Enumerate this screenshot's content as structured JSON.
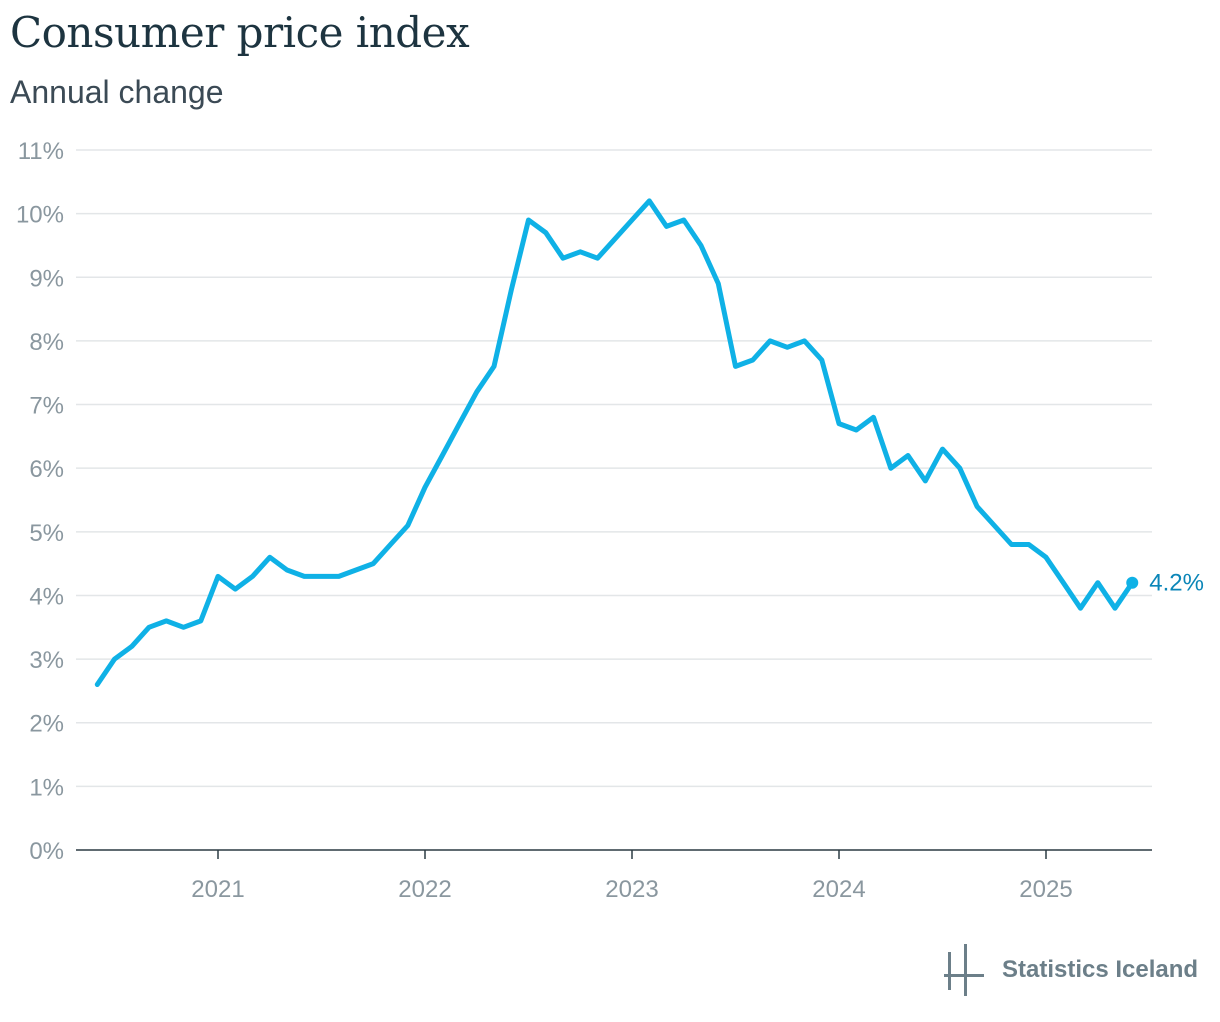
{
  "title": "Consumer price index",
  "subtitle": "Annual change",
  "brand": {
    "name": "Statistics Iceland",
    "logo_icon": "statistics-iceland-logo-icon"
  },
  "colors": {
    "line": "#0fb1e6",
    "end_label": "#0b86b8",
    "grid": "#e3e6e8",
    "axis": "#2b3a42",
    "tick_text": "#8a979f"
  },
  "chart_data": {
    "type": "line",
    "title": "Consumer price index",
    "subtitle": "Annual change",
    "xlabel": "",
    "ylabel": "",
    "ylim": [
      0,
      11
    ],
    "y_ticks": [
      "0%",
      "1%",
      "2%",
      "3%",
      "4%",
      "5%",
      "6%",
      "7%",
      "8%",
      "9%",
      "10%",
      "11%"
    ],
    "x_ticks": [
      "2021",
      "2022",
      "2023",
      "2024",
      "2025"
    ],
    "grid": true,
    "end_label": "4.2%",
    "x": [
      "2020-06",
      "2020-07",
      "2020-08",
      "2020-09",
      "2020-10",
      "2020-11",
      "2020-12",
      "2021-01",
      "2021-02",
      "2021-03",
      "2021-04",
      "2021-05",
      "2021-06",
      "2021-07",
      "2021-08",
      "2021-09",
      "2021-10",
      "2021-11",
      "2021-12",
      "2022-01",
      "2022-02",
      "2022-03",
      "2022-04",
      "2022-05",
      "2022-06",
      "2022-07",
      "2022-08",
      "2022-09",
      "2022-10",
      "2022-11",
      "2022-12",
      "2023-01",
      "2023-02",
      "2023-03",
      "2023-04",
      "2023-05",
      "2023-06",
      "2023-07",
      "2023-08",
      "2023-09",
      "2023-10",
      "2023-11",
      "2023-12",
      "2024-01",
      "2024-02",
      "2024-03",
      "2024-04",
      "2024-05",
      "2024-06",
      "2024-07",
      "2024-08",
      "2024-09",
      "2024-10",
      "2024-11",
      "2024-12",
      "2025-01",
      "2025-02",
      "2025-03",
      "2025-04",
      "2025-05",
      "2025-06"
    ],
    "series": [
      {
        "values": [
          2.6,
          3.0,
          3.2,
          3.5,
          3.6,
          3.5,
          3.6,
          4.3,
          4.1,
          4.3,
          4.6,
          4.4,
          4.3,
          4.3,
          4.3,
          4.4,
          4.5,
          4.8,
          5.1,
          5.7,
          6.2,
          6.7,
          7.2,
          7.6,
          8.8,
          9.9,
          9.7,
          9.3,
          9.4,
          9.3,
          9.6,
          9.9,
          10.2,
          9.8,
          9.9,
          9.5,
          8.9,
          7.6,
          7.7,
          8.0,
          7.9,
          8.0,
          7.7,
          6.7,
          6.6,
          6.8,
          6.0,
          6.2,
          5.8,
          6.3,
          6.0,
          5.4,
          5.1,
          4.8,
          4.8,
          4.6,
          4.2,
          3.8,
          4.2,
          3.8,
          4.2
        ]
      }
    ]
  }
}
